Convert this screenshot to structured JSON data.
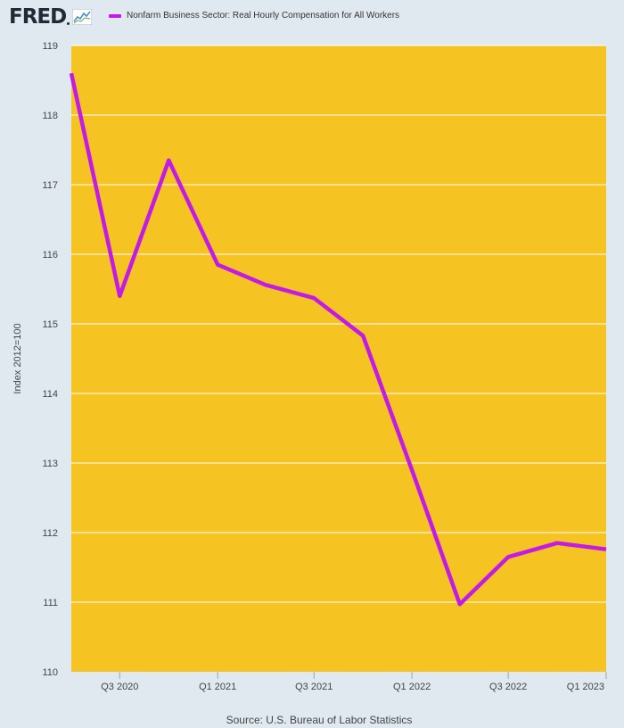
{
  "header": {
    "logo_text": "FRED",
    "logo_icon": "line-chart-icon",
    "legend_label": "Nonfarm Business Sector: Real Hourly Compensation for All Workers"
  },
  "colors": {
    "page_bg": "#e1e9f0",
    "plot_bg": "#f5c322",
    "series": "#c21be8",
    "grid": "#ffffff"
  },
  "chart_data": {
    "type": "line",
    "ylabel": "Index 2012=100",
    "ylim": [
      110,
      119
    ],
    "yticks": [
      110,
      111,
      112,
      113,
      114,
      115,
      116,
      117,
      118,
      119
    ],
    "x": [
      "2020-04-01",
      "2020-07-01",
      "2020-10-01",
      "2021-01-01",
      "2021-04-01",
      "2021-07-01",
      "2021-10-01",
      "2022-01-01",
      "2022-04-01",
      "2022-07-01",
      "2022-10-01",
      "2023-01-01"
    ],
    "xlim": [
      "2020-04-01",
      "2023-01-01"
    ],
    "xticks": [
      {
        "x": "2020-07-01",
        "label": "Q3 2020"
      },
      {
        "x": "2021-01-01",
        "label": "Q1 2021"
      },
      {
        "x": "2021-07-01",
        "label": "Q3 2021"
      },
      {
        "x": "2022-01-01",
        "label": "Q1 2022"
      },
      {
        "x": "2022-07-01",
        "label": "Q3 2022"
      },
      {
        "x": "2023-01-01",
        "label": "Q1 2023"
      }
    ],
    "series": [
      {
        "name": "Nonfarm Business Sector: Real Hourly Compensation for All Workers",
        "values": [
          118.6,
          115.4,
          117.35,
          115.85,
          115.56,
          115.37,
          114.83,
          112.9,
          110.97,
          111.65,
          111.85,
          111.76
        ]
      }
    ],
    "grid": true,
    "legend": "top-left"
  },
  "footer": {
    "source": "Source: U.S. Bureau of Labor Statistics"
  }
}
